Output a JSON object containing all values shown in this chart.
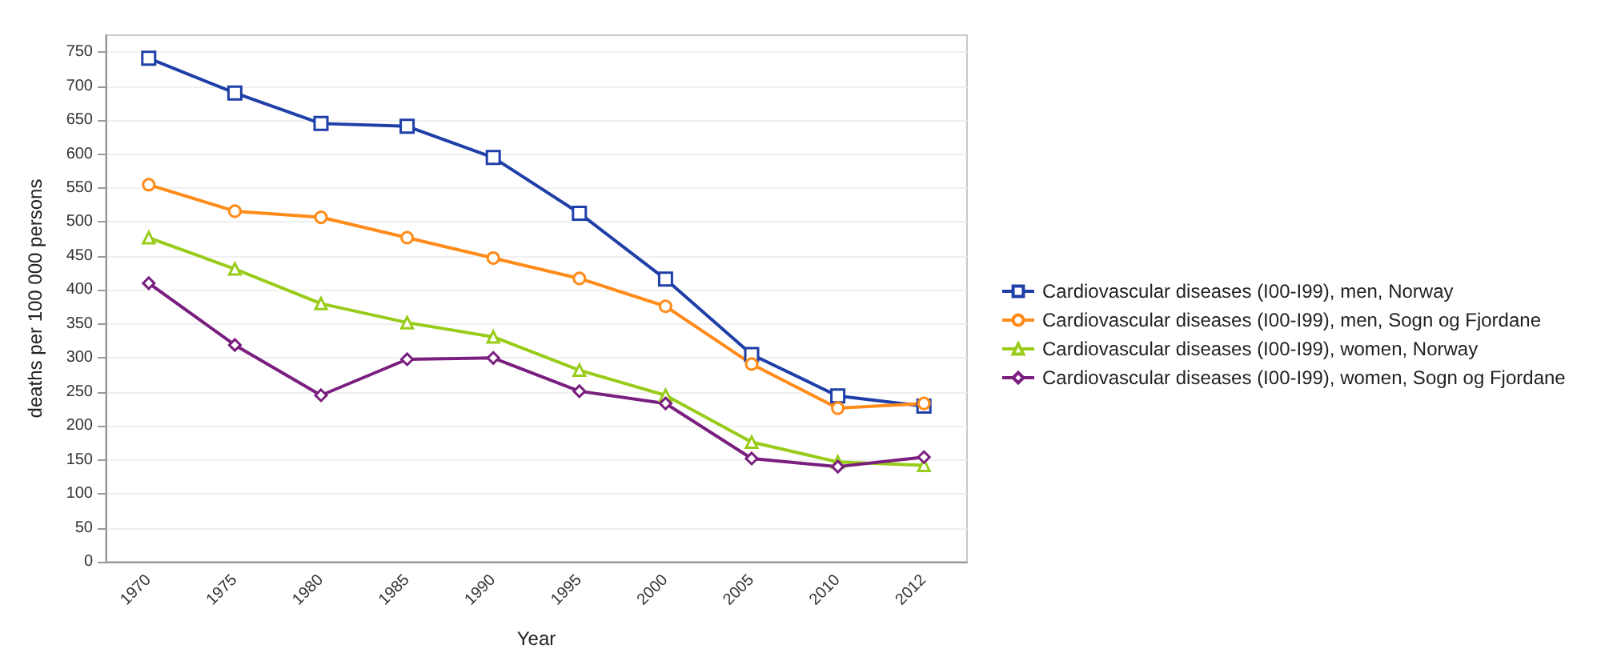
{
  "chart_data": {
    "type": "line",
    "xlabel": "Year",
    "ylabel": "deaths per 100 000 persons",
    "categories": [
      "1970",
      "1975",
      "1980",
      "1985",
      "1990",
      "1995",
      "2000",
      "2005",
      "2010",
      "2012"
    ],
    "ylim": [
      0,
      775
    ],
    "yticks": [
      0,
      50,
      100,
      150,
      200,
      250,
      300,
      350,
      400,
      450,
      500,
      550,
      600,
      650,
      700,
      750
    ],
    "grid": "y",
    "legend": "right",
    "line_style": "solid",
    "series": [
      {
        "name": "Cardiovascular diseases (I00-I99), men, Norway",
        "color": "#1f3fa8",
        "marker": "square",
        "values": [
          741,
          690,
          645,
          641,
          595,
          513,
          416,
          305,
          244,
          229
        ]
      },
      {
        "name": "Cardiovascular diseases (I00-I99), men, Sogn og Fjordane",
        "color": "#ff8c1a",
        "marker": "circle",
        "values": [
          555,
          516,
          507,
          477,
          447,
          417,
          376,
          291,
          226,
          233
        ]
      },
      {
        "name": "Cardiovascular diseases (I00-I99), women, Norway",
        "color": "#99cc1a",
        "marker": "triangle",
        "values": [
          477,
          431,
          380,
          352,
          331,
          282,
          245,
          176,
          147,
          142
        ]
      },
      {
        "name": "Cardiovascular diseases (I00-I99), women, Sogn og Fjordane",
        "color": "#7a1f7f",
        "marker": "diamond",
        "values": [
          410,
          319,
          245,
          298,
          300,
          251,
          233,
          152,
          140,
          154
        ]
      }
    ]
  }
}
